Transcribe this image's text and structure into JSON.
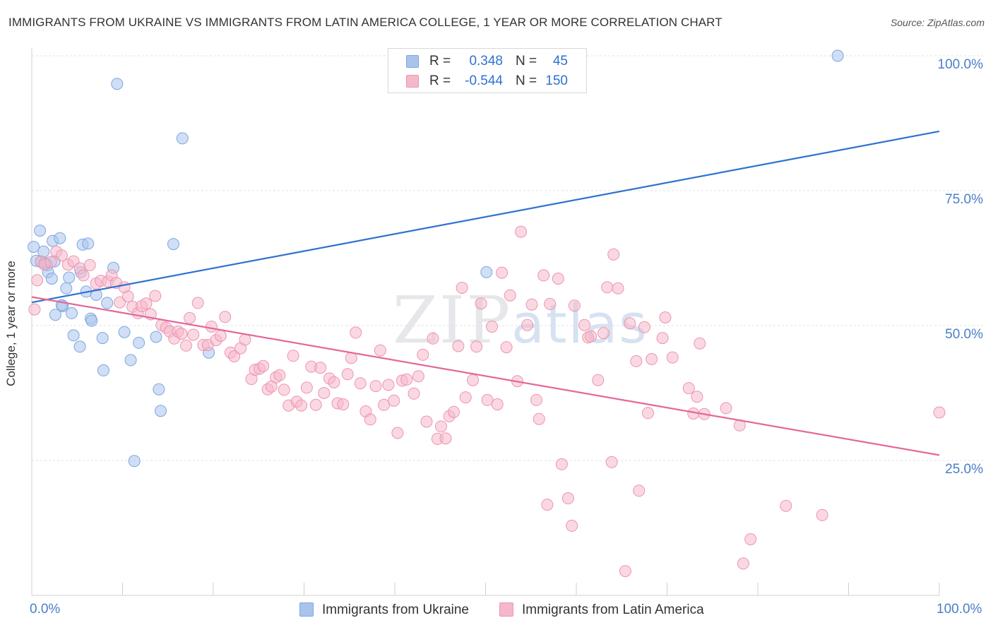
{
  "chart_data": {
    "type": "scatter",
    "title": "IMMIGRANTS FROM UKRAINE VS IMMIGRANTS FROM LATIN AMERICA COLLEGE, 1 YEAR OR MORE CORRELATION CHART",
    "source": "Source: ZipAtlas.com",
    "xlabel": "",
    "ylabel": "College, 1 year or more",
    "xlim": [
      0,
      100
    ],
    "ylim": [
      0,
      100
    ],
    "x_tick_labels": [
      "0.0%",
      "100.0%"
    ],
    "y_tick_labels": [
      "25.0%",
      "50.0%",
      "75.0%",
      "100.0%"
    ],
    "y_ticks": [
      25,
      50,
      75,
      100
    ],
    "watermark": [
      "ZIP",
      "atlas"
    ],
    "legend_stats": [
      {
        "r_label": "R =",
        "r_value": "0.348",
        "n_label": "N =",
        "n_value": "45"
      },
      {
        "r_label": "R =",
        "r_value": "-0.544",
        "n_label": "N =",
        "n_value": "150"
      }
    ],
    "series": [
      {
        "name": "Immigrants from Ukraine",
        "color": "#a9c4ec",
        "edge_color": "#7da6df",
        "line_color": "#2f72d0",
        "trend": [
          [
            0,
            54.3
          ],
          [
            100,
            86
          ]
        ],
        "points": [
          [
            0.2,
            64.6
          ],
          [
            0.5,
            62.0
          ],
          [
            0.9,
            67.6
          ],
          [
            1.0,
            61.8
          ],
          [
            1.3,
            63.7
          ],
          [
            1.5,
            61.5
          ],
          [
            1.7,
            61.2
          ],
          [
            1.8,
            59.9
          ],
          [
            2.2,
            58.7
          ],
          [
            2.3,
            65.7
          ],
          [
            3.1,
            66.2
          ],
          [
            2.6,
            52.0
          ],
          [
            3.4,
            53.6
          ],
          [
            3.8,
            56.9
          ],
          [
            4.1,
            58.9
          ],
          [
            4.4,
            52.3
          ],
          [
            4.6,
            48.2
          ],
          [
            5.3,
            46.1
          ],
          [
            5.4,
            59.9
          ],
          [
            5.6,
            65.0
          ],
          [
            6.0,
            56.3
          ],
          [
            6.2,
            65.2
          ],
          [
            6.5,
            51.3
          ],
          [
            6.6,
            50.9
          ],
          [
            7.1,
            55.7
          ],
          [
            7.8,
            47.7
          ],
          [
            7.9,
            41.7
          ],
          [
            8.3,
            54.2
          ],
          [
            9.0,
            60.7
          ],
          [
            9.4,
            94.8
          ],
          [
            10.2,
            48.8
          ],
          [
            10.9,
            43.6
          ],
          [
            11.3,
            24.9
          ],
          [
            11.8,
            46.8
          ],
          [
            13.7,
            47.9
          ],
          [
            14.0,
            38.2
          ],
          [
            14.2,
            34.2
          ],
          [
            15.6,
            65.1
          ],
          [
            16.6,
            84.7
          ],
          [
            19.5,
            45.0
          ],
          [
            50.1,
            59.9
          ],
          [
            88.8,
            100.0
          ],
          [
            3.3,
            53.8
          ],
          [
            2.5,
            61.9
          ],
          [
            1.4,
            61.6
          ]
        ]
      },
      {
        "name": "Immigrants from Latin America",
        "color": "#f5b8cb",
        "edge_color": "#ef93b0",
        "line_color": "#e4679a",
        "trend": [
          [
            0,
            55.3
          ],
          [
            100,
            26
          ]
        ],
        "points": [
          [
            0.3,
            53.0
          ],
          [
            0.6,
            58.4
          ],
          [
            1.0,
            61.9
          ],
          [
            1.4,
            61.3
          ],
          [
            2.1,
            61.8
          ],
          [
            2.7,
            63.7
          ],
          [
            3.3,
            63.0
          ],
          [
            4.0,
            61.3
          ],
          [
            4.6,
            61.9
          ],
          [
            5.3,
            60.6
          ],
          [
            5.7,
            59.3
          ],
          [
            6.4,
            61.2
          ],
          [
            7.1,
            57.8
          ],
          [
            7.6,
            58.3
          ],
          [
            8.4,
            58.2
          ],
          [
            8.8,
            59.3
          ],
          [
            9.3,
            57.9
          ],
          [
            9.7,
            54.3
          ],
          [
            10.2,
            57.1
          ],
          [
            10.6,
            55.4
          ],
          [
            11.1,
            53.5
          ],
          [
            11.7,
            52.3
          ],
          [
            12.1,
            53.6
          ],
          [
            12.6,
            54.1
          ],
          [
            13.1,
            52.1
          ],
          [
            13.6,
            55.5
          ],
          [
            14.3,
            50.1
          ],
          [
            14.8,
            49.6
          ],
          [
            15.2,
            48.9
          ],
          [
            15.7,
            47.6
          ],
          [
            16.1,
            48.9
          ],
          [
            16.5,
            48.5
          ],
          [
            17.0,
            46.3
          ],
          [
            17.4,
            51.4
          ],
          [
            17.8,
            48.3
          ],
          [
            18.3,
            54.2
          ],
          [
            18.9,
            46.4
          ],
          [
            19.4,
            46.4
          ],
          [
            19.8,
            49.8
          ],
          [
            20.3,
            47.3
          ],
          [
            20.8,
            48.1
          ],
          [
            21.3,
            51.6
          ],
          [
            21.9,
            45.0
          ],
          [
            22.3,
            44.3
          ],
          [
            23.0,
            45.8
          ],
          [
            23.5,
            47.4
          ],
          [
            24.2,
            40.1
          ],
          [
            24.6,
            41.8
          ],
          [
            25.1,
            42.0
          ],
          [
            25.5,
            42.5
          ],
          [
            26.0,
            38.2
          ],
          [
            26.4,
            38.7
          ],
          [
            26.9,
            40.4
          ],
          [
            27.3,
            40.8
          ],
          [
            27.8,
            38.1
          ],
          [
            28.3,
            35.2
          ],
          [
            28.8,
            44.4
          ],
          [
            29.2,
            35.9
          ],
          [
            29.7,
            35.2
          ],
          [
            30.3,
            38.5
          ],
          [
            30.8,
            42.4
          ],
          [
            31.3,
            35.3
          ],
          [
            31.8,
            42.2
          ],
          [
            32.2,
            37.5
          ],
          [
            32.8,
            40.2
          ],
          [
            33.3,
            39.5
          ],
          [
            33.7,
            35.6
          ],
          [
            34.3,
            35.4
          ],
          [
            34.8,
            41.0
          ],
          [
            35.2,
            44.0
          ],
          [
            35.7,
            48.7
          ],
          [
            36.2,
            39.3
          ],
          [
            36.8,
            34.1
          ],
          [
            37.3,
            32.6
          ],
          [
            37.9,
            38.8
          ],
          [
            38.4,
            45.4
          ],
          [
            38.8,
            35.3
          ],
          [
            39.3,
            39.0
          ],
          [
            39.9,
            36.1
          ],
          [
            40.3,
            30.1
          ],
          [
            40.8,
            39.8
          ],
          [
            41.3,
            40.0
          ],
          [
            42.1,
            37.4
          ],
          [
            42.6,
            40.6
          ],
          [
            43.1,
            44.6
          ],
          [
            43.5,
            32.2
          ],
          [
            44.2,
            47.6
          ],
          [
            44.7,
            29.0
          ],
          [
            45.1,
            31.3
          ],
          [
            45.6,
            29.1
          ],
          [
            46.0,
            33.2
          ],
          [
            46.5,
            34.0
          ],
          [
            47.0,
            46.2
          ],
          [
            47.4,
            57.0
          ],
          [
            47.8,
            36.7
          ],
          [
            48.6,
            39.9
          ],
          [
            49.0,
            46.1
          ],
          [
            49.5,
            54.1
          ],
          [
            50.2,
            36.2
          ],
          [
            50.7,
            49.8
          ],
          [
            51.3,
            35.4
          ],
          [
            51.8,
            59.8
          ],
          [
            52.3,
            46.0
          ],
          [
            52.7,
            55.6
          ],
          [
            53.5,
            39.7
          ],
          [
            53.9,
            67.4
          ],
          [
            54.6,
            50.1
          ],
          [
            55.1,
            53.9
          ],
          [
            55.6,
            36.2
          ],
          [
            55.9,
            32.7
          ],
          [
            56.4,
            59.3
          ],
          [
            56.8,
            16.8
          ],
          [
            57.1,
            54.0
          ],
          [
            58.0,
            58.7
          ],
          [
            58.4,
            24.3
          ],
          [
            59.1,
            18.0
          ],
          [
            59.5,
            12.9
          ],
          [
            59.8,
            53.7
          ],
          [
            60.9,
            50.1
          ],
          [
            61.3,
            47.8
          ],
          [
            61.6,
            48.0
          ],
          [
            62.4,
            39.9
          ],
          [
            63.0,
            48.6
          ],
          [
            63.4,
            57.1
          ],
          [
            63.9,
            24.7
          ],
          [
            64.1,
            63.2
          ],
          [
            64.6,
            56.9
          ],
          [
            65.4,
            4.5
          ],
          [
            65.9,
            50.4
          ],
          [
            66.6,
            43.4
          ],
          [
            66.9,
            19.4
          ],
          [
            67.5,
            49.7
          ],
          [
            67.9,
            33.8
          ],
          [
            68.3,
            43.8
          ],
          [
            69.5,
            47.7
          ],
          [
            69.8,
            51.5
          ],
          [
            70.6,
            44.1
          ],
          [
            72.4,
            38.4
          ],
          [
            72.9,
            33.7
          ],
          [
            73.3,
            36.8
          ],
          [
            73.6,
            46.7
          ],
          [
            74.1,
            33.6
          ],
          [
            76.5,
            34.7
          ],
          [
            78.0,
            31.5
          ],
          [
            78.4,
            5.9
          ],
          [
            79.2,
            10.4
          ],
          [
            83.1,
            16.6
          ],
          [
            87.1,
            14.9
          ],
          [
            100.0,
            33.9
          ]
        ]
      }
    ]
  },
  "legend": {
    "items": [
      {
        "label": "Immigrants from Ukraine",
        "color": "#a9c4ec",
        "edge": "#7da6df"
      },
      {
        "label": "Immigrants from Latin America",
        "color": "#f5b8cb",
        "edge": "#ef93b0"
      }
    ]
  }
}
